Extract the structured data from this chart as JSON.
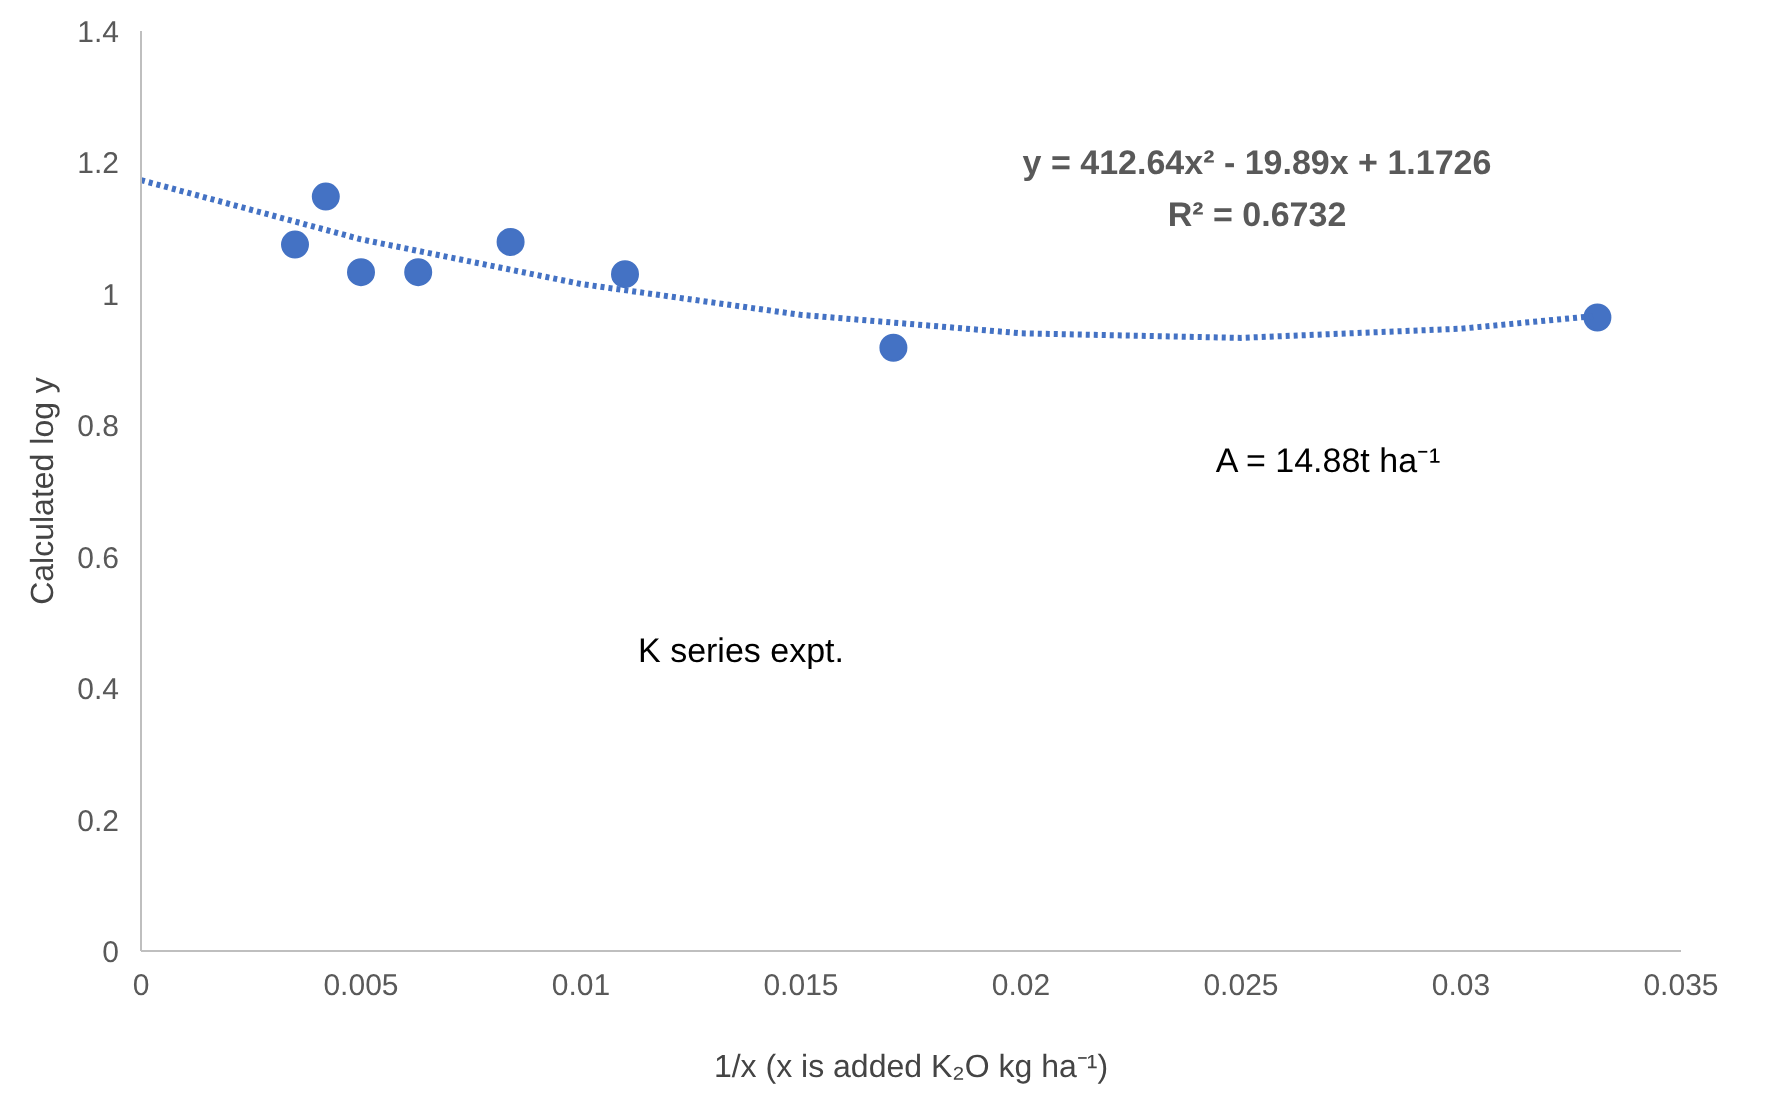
{
  "chart_data": {
    "type": "scatter",
    "xlabel": "1/x (x is added K₂O kg ha⁻¹)",
    "ylabel": "Calculated log y",
    "series": [
      {
        "color": "#4472c4",
        "marker": "circle",
        "x": [
          0.0035,
          0.0042,
          0.005,
          0.0063,
          0.0084,
          0.011,
          0.0171,
          0.0331
        ],
        "values": [
          1.075,
          1.148,
          1.033,
          1.033,
          1.079,
          1.03,
          0.918,
          0.964
        ]
      },
      {
        "type": "line",
        "color": "#4472c4",
        "line_style": "dotted",
        "marker": "none",
        "x": [
          0,
          0.005,
          0.01,
          0.015,
          0.02,
          0.025,
          0.03,
          0.033
        ],
        "values": [
          1.173,
          1.083,
          1.015,
          0.968,
          0.94,
          0.933,
          0.947,
          0.966
        ]
      }
    ],
    "xlim": [
      0,
      0.035
    ],
    "xticks": [
      0,
      0.005,
      0.01,
      0.015,
      0.02,
      0.025,
      0.03,
      0.035
    ],
    "ylim": [
      0,
      1.4
    ],
    "yticks": [
      0,
      0.2,
      0.4,
      0.6,
      0.8,
      1,
      1.2,
      1.4
    ],
    "grid": false,
    "annotations": [
      "y = 412.64x² - 19.89x + 1.1726",
      "R² = 0.6732",
      "A = 14.88t ha⁻¹",
      "K series expt."
    ]
  }
}
